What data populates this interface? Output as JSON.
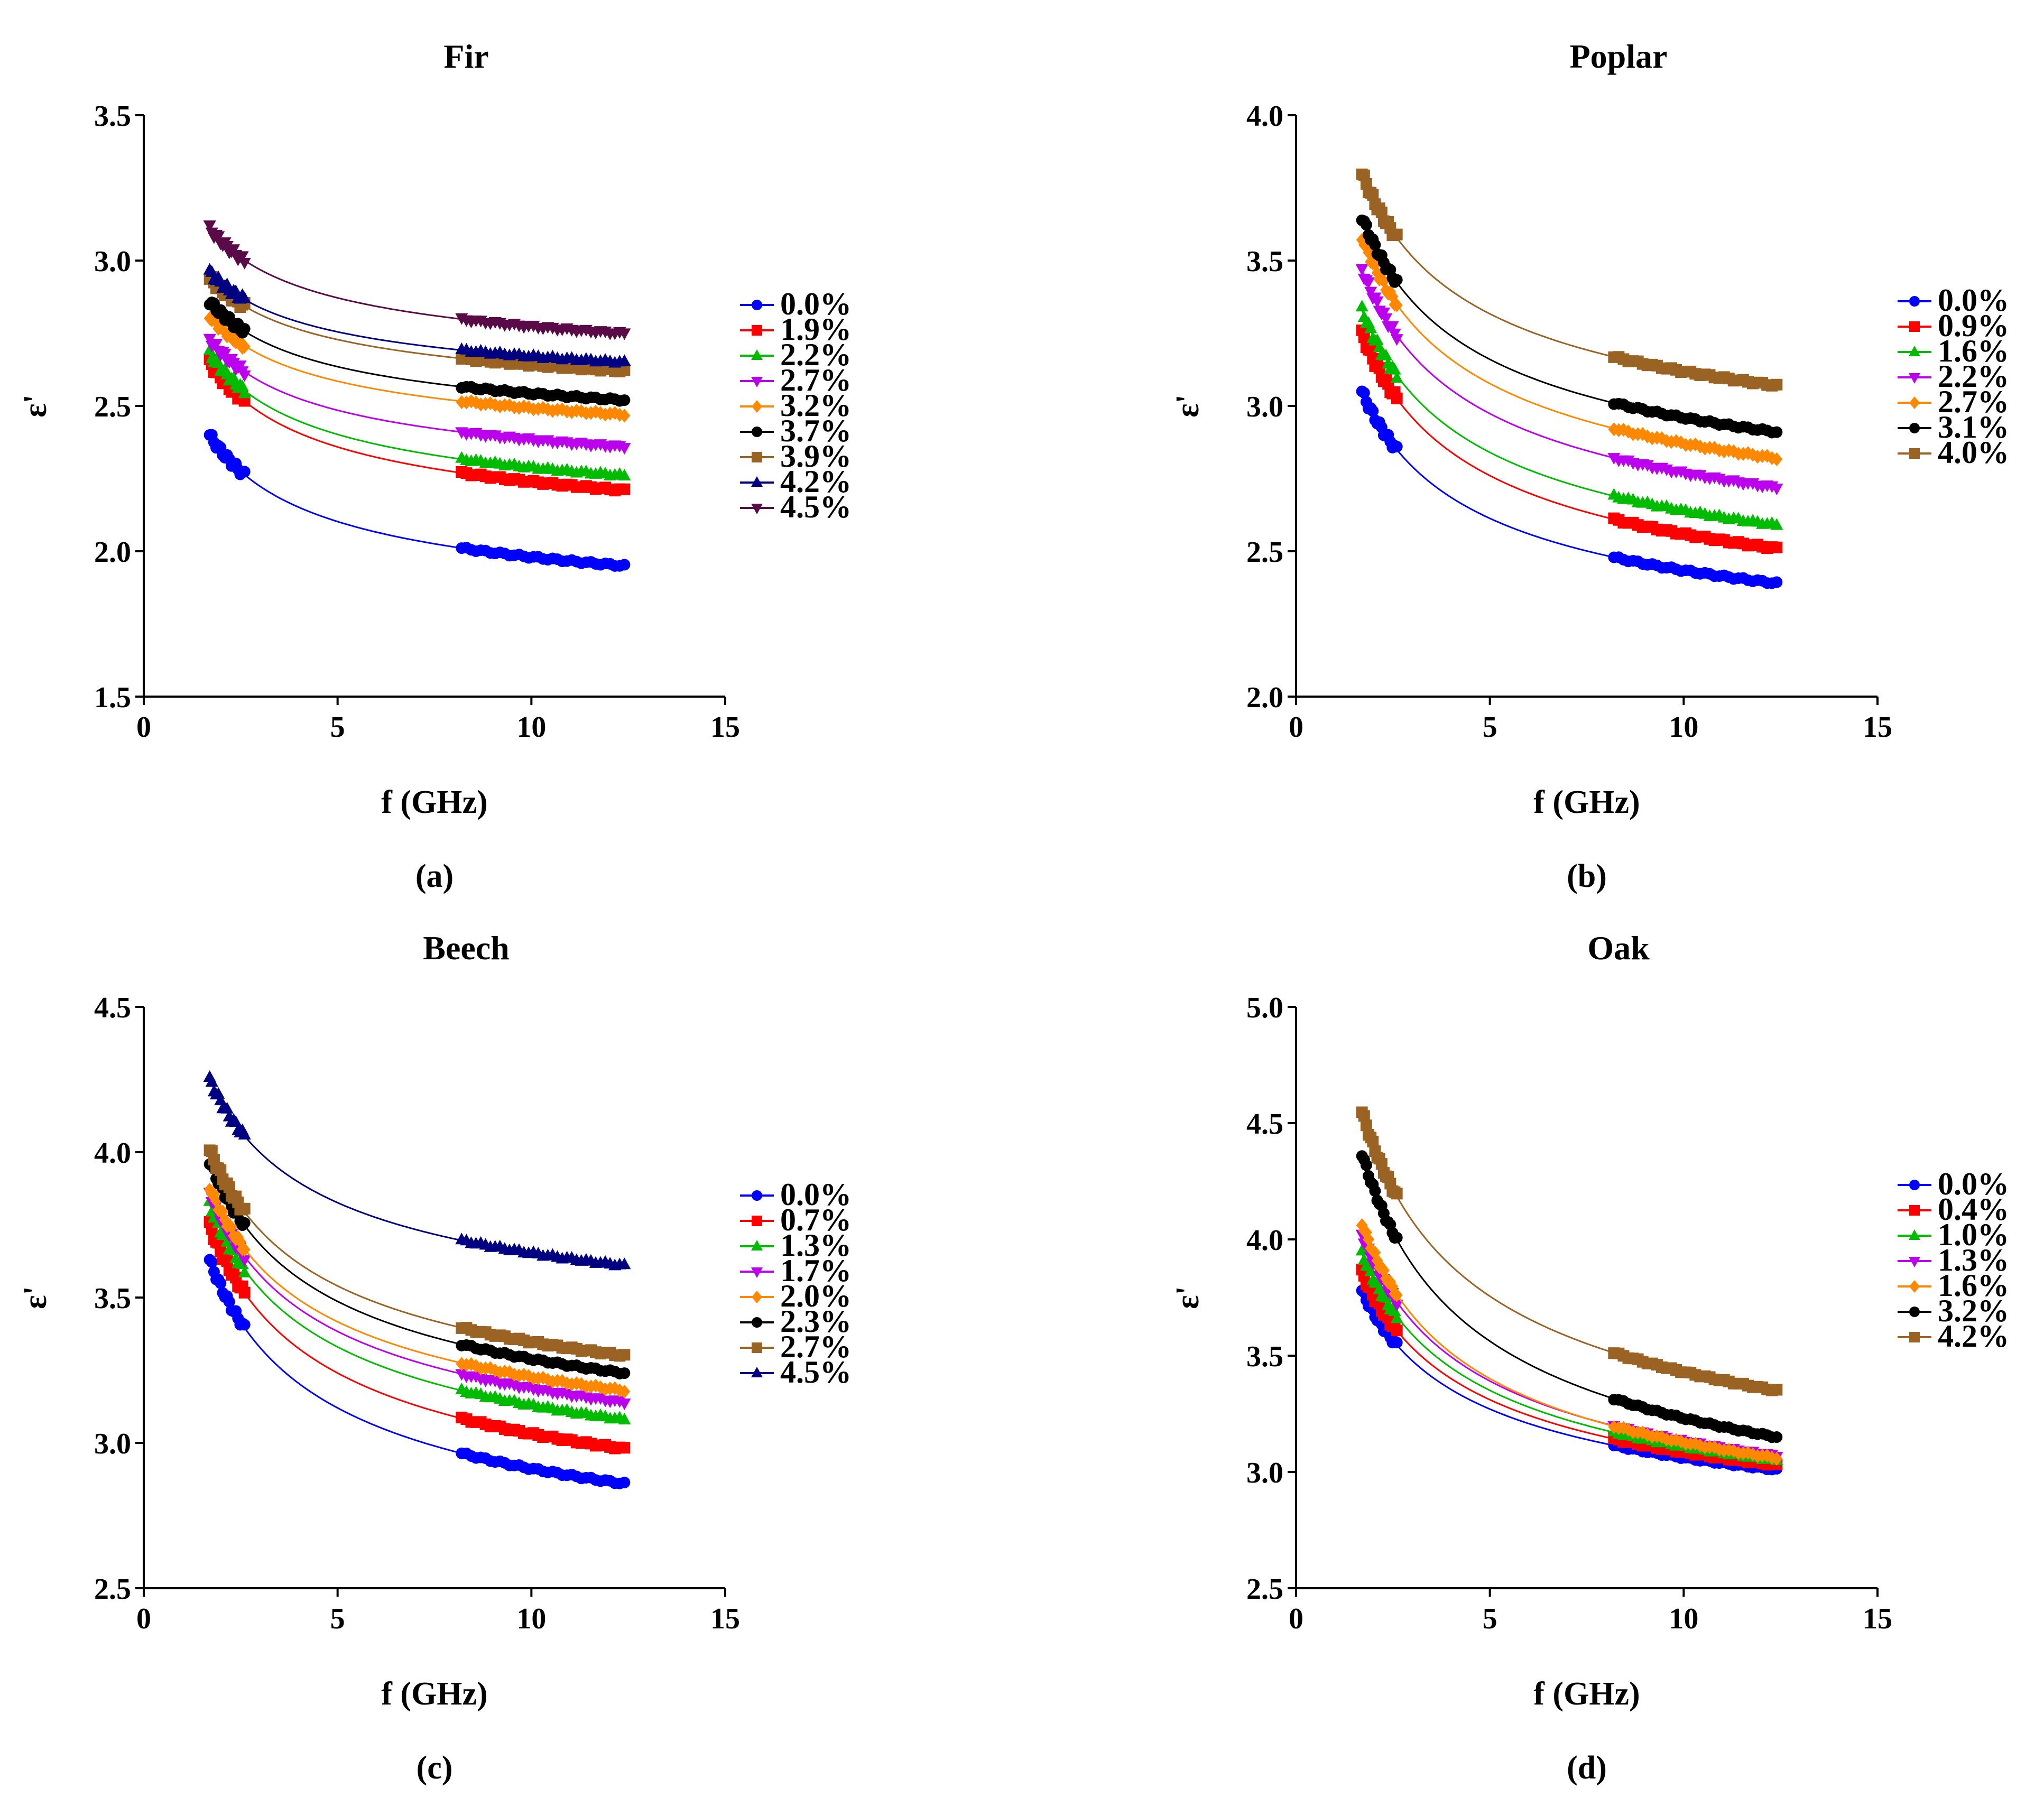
{
  "chart_data": [
    {
      "type": "line",
      "panel_label": "(a)",
      "title": "Fir",
      "xlabel": "f (GHz)",
      "ylabel": "ε'",
      "xlim": [
        0,
        15
      ],
      "ylim": [
        1.5,
        3.5
      ],
      "xticks": [
        0,
        5,
        10,
        15
      ],
      "yticks": [
        1.5,
        2.0,
        2.5,
        3.0,
        3.5
      ],
      "xtick_labels": [
        "0",
        "5",
        "10",
        "15"
      ],
      "ytick_labels": [
        "1.5",
        "2.0",
        "2.5",
        "3.0",
        "3.5"
      ],
      "legend_position": "right",
      "measurement_ranges": [
        [
          1.7,
          2.6
        ],
        [
          8.2,
          12.4
        ]
      ],
      "series": [
        {
          "name": "0.0%",
          "color": "#0000ff",
          "marker": "circle",
          "start": 2.4,
          "end": 1.95
        },
        {
          "name": "1.9%",
          "color": "#ff0000",
          "marker": "square",
          "start": 2.65,
          "end": 2.21
        },
        {
          "name": "2.2%",
          "color": "#00bb00",
          "marker": "triangle-up",
          "start": 2.68,
          "end": 2.26
        },
        {
          "name": "2.7%",
          "color": "#bb00ee",
          "marker": "triangle-down",
          "start": 2.73,
          "end": 2.36
        },
        {
          "name": "3.2%",
          "color": "#ff8800",
          "marker": "diamond",
          "start": 2.81,
          "end": 2.47
        },
        {
          "name": "3.7%",
          "color": "#000000",
          "marker": "circle",
          "start": 2.86,
          "end": 2.52
        },
        {
          "name": "3.9%",
          "color": "#9a6324",
          "marker": "square",
          "start": 2.94,
          "end": 2.62
        },
        {
          "name": "4.2%",
          "color": "#000080",
          "marker": "triangle-up",
          "start": 2.96,
          "end": 2.65
        },
        {
          "name": "4.5%",
          "color": "#5a0a46",
          "marker": "triangle-down",
          "start": 3.11,
          "end": 2.75
        }
      ]
    },
    {
      "type": "line",
      "panel_label": "(b)",
      "title": "Poplar",
      "xlabel": "f (GHz)",
      "ylabel": "ε'",
      "xlim": [
        0,
        15
      ],
      "ylim": [
        2.0,
        4.0
      ],
      "xticks": [
        0,
        5,
        10,
        15
      ],
      "yticks": [
        2.0,
        2.5,
        3.0,
        3.5,
        4.0
      ],
      "xtick_labels": [
        "0",
        "5",
        "10",
        "15"
      ],
      "ytick_labels": [
        "2.0",
        "2.5",
        "3.0",
        "3.5",
        "4.0"
      ],
      "legend_position": "right",
      "measurement_ranges": [
        [
          1.7,
          2.6
        ],
        [
          8.2,
          12.4
        ]
      ],
      "series": [
        {
          "name": "0.0%",
          "color": "#0000ff",
          "marker": "circle",
          "start": 3.05,
          "end": 2.39
        },
        {
          "name": "0.9%",
          "color": "#ff0000",
          "marker": "square",
          "start": 3.25,
          "end": 2.51
        },
        {
          "name": "1.6%",
          "color": "#00bb00",
          "marker": "triangle-up",
          "start": 3.33,
          "end": 2.59
        },
        {
          "name": "2.2%",
          "color": "#bb00ee",
          "marker": "triangle-down",
          "start": 3.47,
          "end": 2.72
        },
        {
          "name": "2.7%",
          "color": "#ff8800",
          "marker": "diamond",
          "start": 3.58,
          "end": 2.82
        },
        {
          "name": "3.1%",
          "color": "#000000",
          "marker": "circle",
          "start": 3.65,
          "end": 2.91
        },
        {
          "name": "4.0%",
          "color": "#9a6324",
          "marker": "square",
          "start": 3.8,
          "end": 3.07
        }
      ]
    },
    {
      "type": "line",
      "panel_label": "(c)",
      "title": "Beech",
      "xlabel": "f (GHz)",
      "ylabel": "ε'",
      "xlim": [
        0,
        15
      ],
      "ylim": [
        2.5,
        4.5
      ],
      "xticks": [
        0,
        5,
        10,
        15
      ],
      "yticks": [
        2.5,
        3.0,
        3.5,
        4.0,
        4.5
      ],
      "xtick_labels": [
        "0",
        "5",
        "10",
        "15"
      ],
      "ytick_labels": [
        "2.5",
        "3.0",
        "3.5",
        "4.0",
        "4.5"
      ],
      "legend_position": "right",
      "measurement_ranges": [
        [
          1.7,
          2.6
        ],
        [
          8.2,
          12.4
        ]
      ],
      "series": [
        {
          "name": "0.0%",
          "color": "#0000ff",
          "marker": "circle",
          "start": 3.63,
          "end": 2.86
        },
        {
          "name": "0.7%",
          "color": "#ff0000",
          "marker": "square",
          "start": 3.75,
          "end": 2.98
        },
        {
          "name": "1.3%",
          "color": "#00bb00",
          "marker": "triangle-up",
          "start": 3.82,
          "end": 3.08
        },
        {
          "name": "1.7%",
          "color": "#bb00ee",
          "marker": "triangle-down",
          "start": 3.86,
          "end": 3.14
        },
        {
          "name": "2.0%",
          "color": "#ff8800",
          "marker": "diamond",
          "start": 3.88,
          "end": 3.18
        },
        {
          "name": "2.3%",
          "color": "#000000",
          "marker": "circle",
          "start": 3.97,
          "end": 3.24
        },
        {
          "name": "2.7%",
          "color": "#9a6324",
          "marker": "square",
          "start": 4.01,
          "end": 3.3
        },
        {
          "name": "4.5%",
          "color": "#000080",
          "marker": "triangle-up",
          "start": 4.25,
          "end": 3.61
        }
      ]
    },
    {
      "type": "line",
      "panel_label": "(d)",
      "title": "Oak",
      "xlabel": "f (GHz)",
      "ylabel": "ε'",
      "xlim": [
        0,
        15
      ],
      "ylim": [
        2.5,
        5.0
      ],
      "xticks": [
        0,
        5,
        10,
        15
      ],
      "yticks": [
        2.5,
        3.0,
        3.5,
        4.0,
        4.5,
        5.0
      ],
      "xtick_labels": [
        "0",
        "5",
        "10",
        "15"
      ],
      "ytick_labels": [
        "2.5",
        "3.0",
        "3.5",
        "4.0",
        "4.5",
        "5.0"
      ],
      "legend_position": "right",
      "measurement_ranges": [
        [
          1.7,
          2.6
        ],
        [
          8.2,
          12.4
        ]
      ],
      "series": [
        {
          "name": "0.0%",
          "color": "#0000ff",
          "marker": "circle",
          "start": 3.78,
          "end": 3.01
        },
        {
          "name": "0.4%",
          "color": "#ff0000",
          "marker": "square",
          "start": 3.86,
          "end": 3.03
        },
        {
          "name": "1.0%",
          "color": "#00bb00",
          "marker": "triangle-up",
          "start": 3.94,
          "end": 3.05
        },
        {
          "name": "1.3%",
          "color": "#bb00ee",
          "marker": "triangle-down",
          "start": 4.02,
          "end": 3.07
        },
        {
          "name": "1.6%",
          "color": "#ff8800",
          "marker": "diamond",
          "start": 4.07,
          "end": 3.06
        },
        {
          "name": "3.2%",
          "color": "#000000",
          "marker": "circle",
          "start": 4.37,
          "end": 3.15
        },
        {
          "name": "4.2%",
          "color": "#9a6324",
          "marker": "square",
          "start": 4.55,
          "end": 3.35
        }
      ]
    }
  ]
}
